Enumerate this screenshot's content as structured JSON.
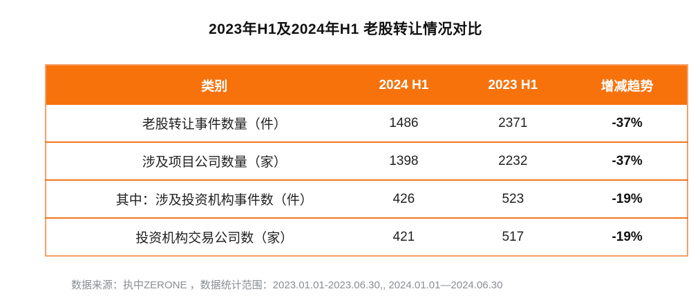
{
  "page": {
    "title": "2023年H1及2024年H1 老股转让情况对比",
    "footer": "数据来源：执中ZERONE ，数据统计范围：2023.01.01-2023.06.30,,  2024.01.01—2024.06.30"
  },
  "colors": {
    "header_bg": "#F8720C",
    "header_text": "#FFFFFF",
    "table_border": "#EF751C",
    "trend_text": "#111111",
    "footer_text": "#8A8D93"
  },
  "chart_data": {
    "type": "table",
    "title": "2023年H1及2024年H1 老股转让情况对比",
    "columns": [
      "类别",
      "2024 H1",
      "2023 H1",
      "增减趋势"
    ],
    "rows": [
      {
        "label": "老股转让事件数量（件）",
        "h1_2024": "1486",
        "h1_2023": "2371",
        "trend": "-37%"
      },
      {
        "label": "涉及项目公司数量（家）",
        "h1_2024": "1398",
        "h1_2023": "2232",
        "trend": "-37%"
      },
      {
        "label": "其中：涉及投资机构事件数（件）",
        "h1_2024": "426",
        "h1_2023": "523",
        "trend": "-19%"
      },
      {
        "label": "投资机构交易公司数（家）",
        "h1_2024": "421",
        "h1_2023": "517",
        "trend": "-19%"
      }
    ],
    "source_note": "数据来源：执中ZERONE ，数据统计范围：2023.01.01-2023.06.30,,  2024.01.01—2024.06.30"
  }
}
